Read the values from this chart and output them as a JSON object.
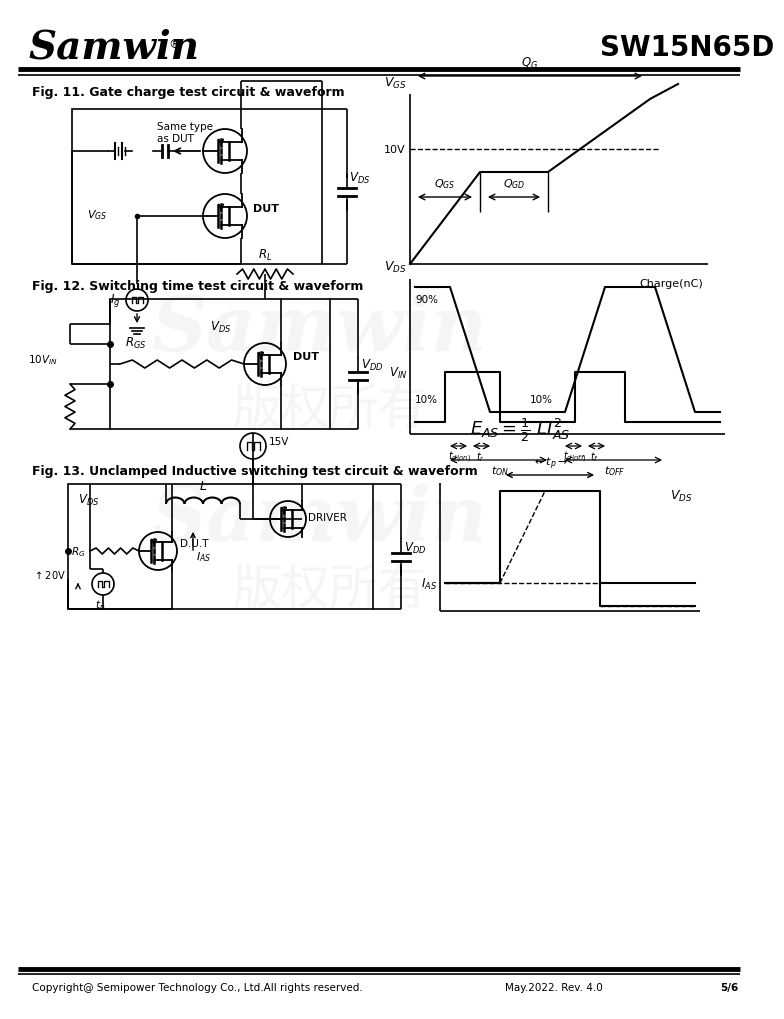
{
  "title_company": "Samwin",
  "title_part": "SW15N65D",
  "fig11_title": "Fig. 11. Gate charge test circuit & waveform",
  "fig12_title": "Fig. 12. Switching time test circuit & waveform",
  "fig13_title": "Fig. 13. Unclamped Inductive switching test circuit & waveform",
  "footer_left": "Copyright@ Semipower Technology Co., Ltd.All rights reserved.",
  "footer_mid": "May.2022. Rev. 4.0",
  "footer_right": "5/6",
  "bg_color": "#ffffff"
}
